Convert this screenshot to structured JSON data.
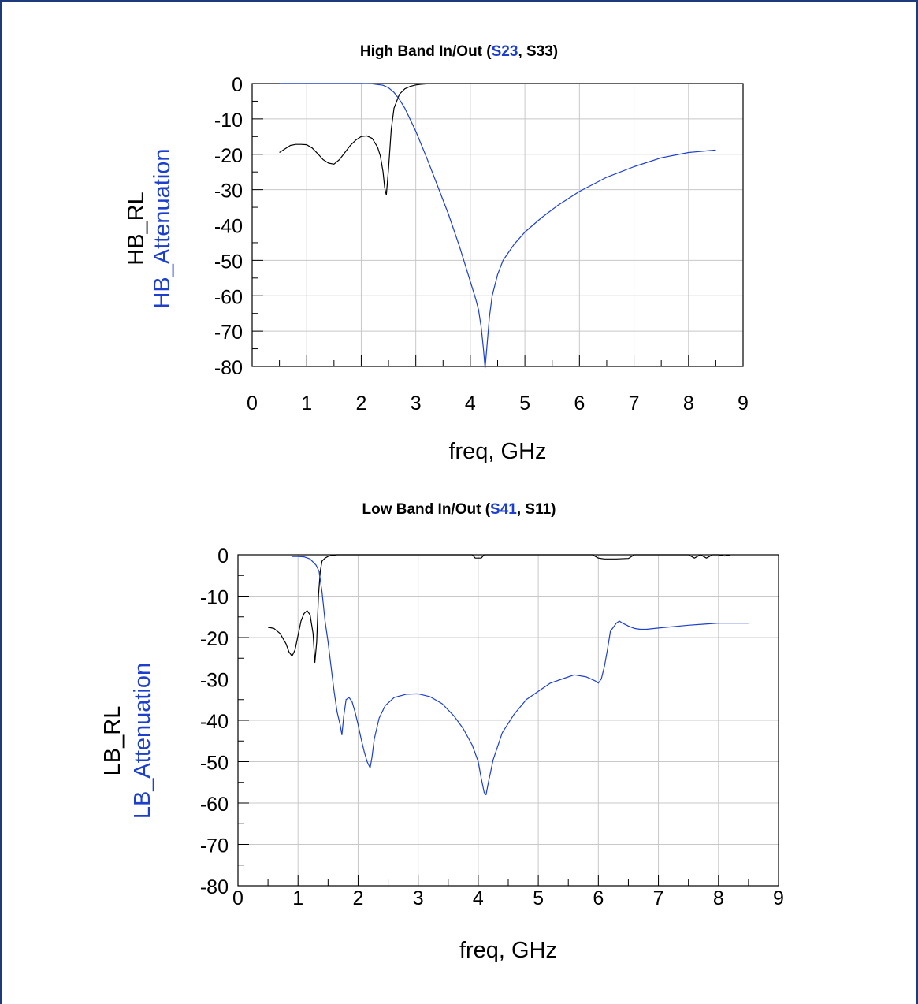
{
  "chart_data": [
    {
      "type": "line",
      "title_parts": [
        {
          "text": "High Band In/Out (",
          "color": "#000000"
        },
        {
          "text": "S23",
          "color": "#1c3fcf"
        },
        {
          "text": ", S33)",
          "color": "#000000"
        }
      ],
      "xlabel": "freq, GHz",
      "ylabels": [
        {
          "text": "HB_RL",
          "color": "#000000"
        },
        {
          "text": "HB_Attenuation",
          "color": "#1c3fcf"
        }
      ],
      "xlim": [
        0,
        9
      ],
      "ylim": [
        -80,
        0
      ],
      "xticks": [
        "0",
        "1",
        "2",
        "3",
        "4",
        "5",
        "6",
        "7",
        "8",
        "9"
      ],
      "yticks": [
        "0",
        "-10",
        "-20",
        "-30",
        "-40",
        "-50",
        "-60",
        "-70",
        "-80"
      ],
      "grid": true,
      "series": [
        {
          "color": "#000000",
          "x": [
            0.5,
            0.6,
            0.7,
            0.8,
            0.9,
            1.0,
            1.1,
            1.2,
            1.3,
            1.4,
            1.5,
            1.6,
            1.7,
            1.8,
            1.9,
            2.0,
            2.1,
            2.2,
            2.3,
            2.35,
            2.4,
            2.43,
            2.46,
            2.5,
            2.55,
            2.6,
            2.7,
            2.8,
            2.9,
            3.0,
            3.1,
            3.2,
            3.25
          ],
          "y": [
            -19.5,
            -18.5,
            -17.5,
            -17.2,
            -17.2,
            -17.3,
            -18.2,
            -19.8,
            -21.5,
            -22.5,
            -22.8,
            -21.5,
            -19.5,
            -17.5,
            -16,
            -15,
            -14.8,
            -15.5,
            -18,
            -20.5,
            -25,
            -29.5,
            -31.5,
            -24,
            -13,
            -7,
            -3,
            -1.5,
            -0.8,
            -0.4,
            -0.2,
            -0.1,
            -0.1
          ]
        },
        {
          "color": "#1c3fcf",
          "x": [
            0.5,
            1.0,
            1.5,
            2.0,
            2.2,
            2.4,
            2.5,
            2.6,
            2.7,
            2.8,
            3.0,
            3.2,
            3.4,
            3.6,
            3.8,
            3.9,
            4.0,
            4.1,
            4.15,
            4.2,
            4.24,
            4.27,
            4.3,
            4.35,
            4.4,
            4.5,
            4.6,
            4.8,
            5.0,
            5.3,
            5.6,
            6.0,
            6.5,
            7.0,
            7.5,
            8.0,
            8.5
          ],
          "y": [
            0,
            0,
            0,
            0,
            -0.1,
            -0.5,
            -1.2,
            -2.5,
            -4.5,
            -7,
            -13.5,
            -21,
            -29,
            -37,
            -46,
            -51,
            -56,
            -61,
            -64,
            -69,
            -75,
            -80.5,
            -75,
            -66,
            -60,
            -54,
            -50,
            -45.5,
            -42,
            -38,
            -34.5,
            -30.5,
            -26.5,
            -23.5,
            -21,
            -19.5,
            -18.8
          ]
        }
      ]
    },
    {
      "type": "line",
      "title_parts": [
        {
          "text": "Low Band In/Out (",
          "color": "#000000"
        },
        {
          "text": "S41",
          "color": "#1c3fcf"
        },
        {
          "text": ", S11)",
          "color": "#000000"
        }
      ],
      "xlabel": "freq, GHz",
      "ylabels": [
        {
          "text": "LB_RL",
          "color": "#000000"
        },
        {
          "text": "LB_Attenuation",
          "color": "#1c3fcf"
        }
      ],
      "xlim": [
        0,
        9
      ],
      "ylim": [
        -80,
        0
      ],
      "xticks": [
        "0",
        "1",
        "2",
        "3",
        "4",
        "5",
        "6",
        "7",
        "8",
        "9"
      ],
      "yticks": [
        "0",
        "-10",
        "-20",
        "-30",
        "-40",
        "-50",
        "-60",
        "-70",
        "-80"
      ],
      "grid": true,
      "series": [
        {
          "color": "#000000",
          "x": [
            0.5,
            0.6,
            0.7,
            0.8,
            0.85,
            0.9,
            0.95,
            1.0,
            1.05,
            1.1,
            1.15,
            1.2,
            1.25,
            1.28,
            1.31,
            1.34,
            1.37,
            1.4,
            1.45,
            1.5,
            1.55,
            1.6,
            1.65,
            1.7,
            1.9,
            2.5,
            3.0,
            3.5,
            3.9,
            3.95,
            4.0,
            4.05,
            4.1,
            5.0,
            5.9,
            6.0,
            6.1,
            6.3,
            6.5,
            6.6,
            6.8,
            7.0,
            7.5,
            7.6,
            7.7,
            7.8,
            7.9,
            8.0,
            8.1,
            8.2
          ],
          "y": [
            -17.5,
            -17.8,
            -19,
            -21.5,
            -23.5,
            -24.5,
            -23,
            -19.5,
            -16,
            -14.2,
            -13.5,
            -14.5,
            -19,
            -26,
            -21,
            -10,
            -4,
            -1.5,
            -0.8,
            -0.4,
            -0.2,
            -0.1,
            0,
            0,
            0,
            0,
            0,
            0,
            0,
            -0.8,
            -0.8,
            -0.8,
            0,
            0,
            0,
            -0.8,
            -1,
            -1,
            -0.9,
            0,
            0,
            0,
            0,
            -0.8,
            0,
            -0.8,
            0,
            0,
            -0.3,
            0
          ]
        },
        {
          "color": "#1c3fcf",
          "x": [
            0.9,
            1.0,
            1.1,
            1.2,
            1.3,
            1.35,
            1.4,
            1.45,
            1.5,
            1.55,
            1.6,
            1.65,
            1.7,
            1.73,
            1.76,
            1.8,
            1.85,
            1.9,
            1.95,
            2.0,
            2.05,
            2.1,
            2.15,
            2.2,
            2.23,
            2.27,
            2.35,
            2.45,
            2.6,
            2.8,
            3.0,
            3.2,
            3.4,
            3.6,
            3.75,
            3.9,
            4.0,
            4.05,
            4.1,
            4.13,
            4.17,
            4.25,
            4.4,
            4.6,
            4.8,
            5.0,
            5.2,
            5.4,
            5.6,
            5.8,
            5.95,
            6.0,
            6.05,
            6.1,
            6.15,
            6.2,
            6.3,
            6.35,
            6.4,
            6.5,
            6.6,
            6.7,
            6.8,
            7.0,
            7.5,
            8.0,
            8.5
          ],
          "y": [
            -0.4,
            -0.4,
            -0.5,
            -1,
            -2.5,
            -4,
            -9,
            -16,
            -21,
            -27,
            -33,
            -38,
            -41,
            -43.5,
            -39,
            -35,
            -34.5,
            -35.5,
            -38,
            -41,
            -44.5,
            -47.5,
            -50,
            -51.5,
            -49,
            -44.5,
            -39.5,
            -36.5,
            -34.5,
            -33.7,
            -33.6,
            -34.3,
            -36,
            -39,
            -42,
            -46,
            -50,
            -54,
            -57.5,
            -58,
            -55,
            -49.5,
            -43,
            -38.5,
            -35,
            -33,
            -31,
            -30,
            -29,
            -29.5,
            -30.5,
            -31,
            -30,
            -27,
            -23,
            -18.5,
            -16.5,
            -16,
            -16.5,
            -17.2,
            -17.8,
            -18,
            -18,
            -17.7,
            -17,
            -16.5,
            -16.5
          ]
        }
      ]
    }
  ]
}
